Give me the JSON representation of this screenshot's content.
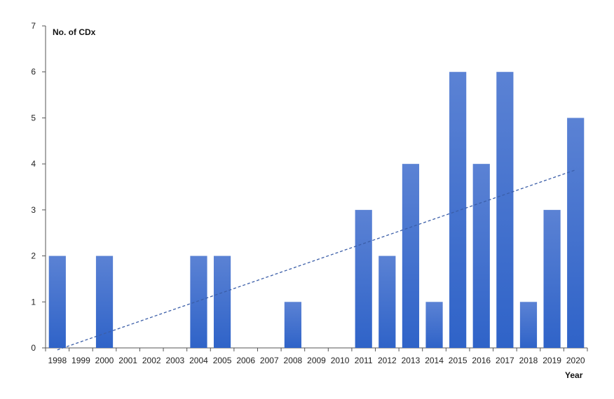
{
  "chart_data": {
    "type": "bar",
    "ylabel": "No. of CDx",
    "xlabel": "Year",
    "categories": [
      "1998",
      "1999",
      "2000",
      "2001",
      "2002",
      "2003",
      "2004",
      "2005",
      "2006",
      "2007",
      "2008",
      "2009",
      "2010",
      "2011",
      "2012",
      "2013",
      "2014",
      "2015",
      "2016",
      "2017",
      "2018",
      "2019",
      "2020"
    ],
    "values": [
      2,
      0,
      2,
      0,
      0,
      0,
      2,
      2,
      0,
      0,
      1,
      0,
      0,
      3,
      2,
      4,
      1,
      6,
      4,
      6,
      1,
      3,
      5
    ],
    "ylim": [
      0,
      7
    ],
    "yticks": [
      0,
      1,
      2,
      3,
      4,
      5,
      6,
      7
    ],
    "grid": false,
    "trendline": {
      "type": "linear",
      "style": "dashed"
    },
    "colors": {
      "bar_top": "#5b82d4",
      "bar_bottom": "#2f63c8",
      "trend": "#3b5ea8",
      "axis": "#555555"
    }
  }
}
